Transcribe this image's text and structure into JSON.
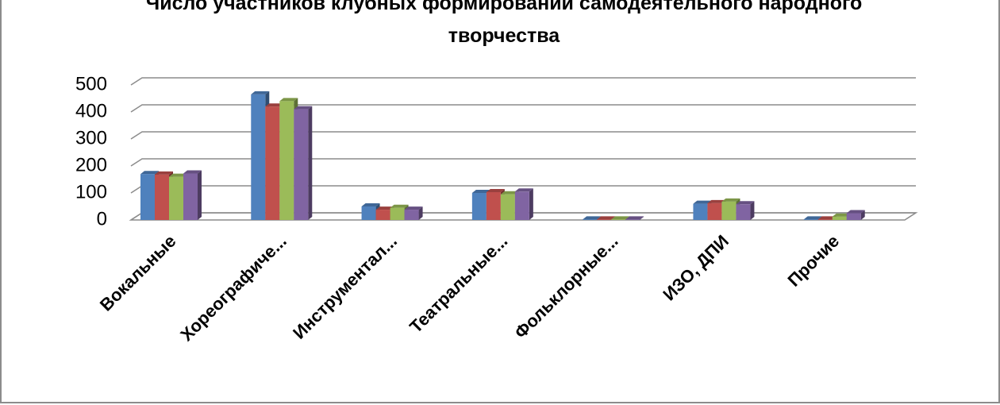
{
  "chart_data": {
    "type": "bar3d",
    "title": "Число участников клубных формирований самодеятельного народного творчества",
    "categories": [
      "Вокальные",
      "Хореографиче...",
      "Инструментал...",
      "Театральные...",
      "Фольклорные...",
      "ИЗО, ДПИ",
      "Прочие"
    ],
    "series": [
      {
        "color": "#4f81bd",
        "values": [
          170,
          465,
          50,
          100,
          2,
          60,
          2
        ]
      },
      {
        "color": "#c0504d",
        "values": [
          168,
          420,
          38,
          103,
          2,
          62,
          2
        ]
      },
      {
        "color": "#9bbb59",
        "values": [
          160,
          440,
          45,
          95,
          2,
          68,
          12
        ]
      },
      {
        "color": "#8064a2",
        "values": [
          172,
          410,
          38,
          105,
          2,
          58,
          25
        ]
      }
    ],
    "ylim": [
      0,
      500
    ],
    "yticks": [
      0,
      100,
      200,
      300,
      400,
      500
    ],
    "grid": true
  }
}
